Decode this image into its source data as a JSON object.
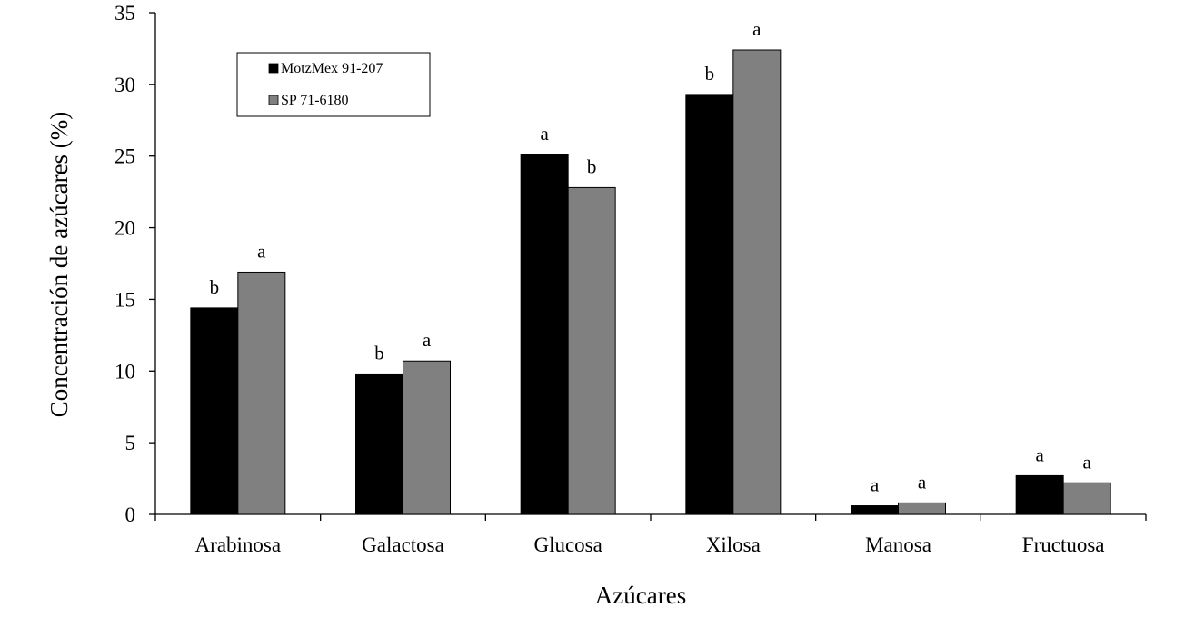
{
  "chart_data": {
    "type": "bar",
    "title": "",
    "xlabel": "Azúcares",
    "ylabel": "Concentración de azúcares (%)",
    "ylim": [
      0,
      35
    ],
    "yticks": [
      0,
      5,
      10,
      15,
      20,
      25,
      30,
      35
    ],
    "grid": false,
    "legend_position": "top-left",
    "categories": [
      "Arabinosa",
      "Galactosa",
      "Glucosa",
      "Xilosa",
      "Manosa",
      "Fructuosa"
    ],
    "series": [
      {
        "name": "MotzMex 91-207",
        "color": "#000000",
        "values": [
          14.4,
          9.8,
          25.1,
          29.3,
          0.6,
          2.7
        ],
        "labels": [
          "b",
          "b",
          "a",
          "b",
          "a",
          "a"
        ]
      },
      {
        "name": "SP 71-6180",
        "color": "#808080",
        "values": [
          16.9,
          10.7,
          22.8,
          32.4,
          0.8,
          2.2
        ],
        "labels": [
          "a",
          "a",
          "b",
          "a",
          "a",
          "a"
        ]
      }
    ]
  }
}
